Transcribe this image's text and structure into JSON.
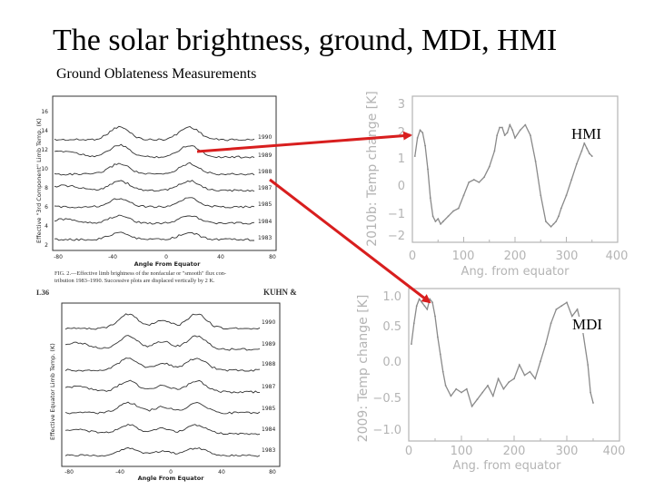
{
  "slide": {
    "title": "The solar brightness, ground, MDI, HMI",
    "subtitle": "Ground Oblateness Measurements"
  },
  "colors": {
    "arrow": "#d81e1e",
    "trace_gray": "#8a8a8a",
    "axis_gray": "#b4b4b4",
    "scan_ink": "#222222"
  },
  "ground_top": {
    "y_axis_label": "Effective \"3rd Component\" Limb Temp. (K)",
    "y_ticks": [
      "2",
      "4",
      "6",
      "8",
      "10",
      "12",
      "14",
      "16"
    ],
    "x_axis_label": "Angle From Equator",
    "x_ticks": [
      "-80",
      "-40",
      "0",
      "40",
      "80"
    ],
    "years": [
      "1990",
      "1989",
      "1988",
      "1987",
      "1985",
      "1984",
      "1983"
    ],
    "caption_line1": "FIG. 2.—Effective limb brightness of the nonfacular or \"smooth\" flux con-",
    "caption_line2": "tribution 1983–1990. Successive plots are displaced vertically by 2 K.",
    "page_tag": "L36",
    "author": "KUHN &"
  },
  "ground_bottom": {
    "y_axis_label": "Effective Equator Limb Temp. (K)",
    "years": [
      "1990",
      "1989",
      "1988",
      "1987",
      "1985",
      "1984",
      "1983"
    ],
    "x_ticks": [
      "-80",
      "-40",
      "0",
      "40",
      "80"
    ],
    "x_axis_label": "Angle From Equator"
  },
  "hmi_plot": {
    "label": "HMI",
    "ylabel": "2010b: Temp change [K]",
    "xlabel": "Ang. from equator",
    "y_ticks": [
      "3",
      "2",
      "1",
      "0",
      "−1",
      "−2"
    ],
    "x_ticks": [
      "0",
      "100",
      "200",
      "300",
      "400"
    ]
  },
  "mdi_plot": {
    "label": "MDI",
    "ylabel": "2009: Temp change [K]",
    "xlabel": "Ang. from equator",
    "y_ticks": [
      "1.0",
      "0.5",
      "0.0",
      "−0.5",
      "−1.0"
    ],
    "x_ticks": [
      "0",
      "100",
      "200",
      "300",
      "400"
    ]
  },
  "chart_data": [
    {
      "type": "line",
      "title": "HMI",
      "xlabel": "Ang. from equator",
      "ylabel": "2010b: Temp change [K]",
      "xlim": [
        0,
        400
      ],
      "ylim": [
        -2.3,
        3.3
      ],
      "x": [
        5,
        10,
        15,
        20,
        25,
        30,
        35,
        40,
        45,
        50,
        55,
        60,
        70,
        80,
        90,
        100,
        110,
        120,
        130,
        140,
        150,
        160,
        165,
        170,
        175,
        180,
        185,
        190,
        195,
        200,
        210,
        220,
        230,
        240,
        250,
        260,
        270,
        275,
        280,
        285,
        290,
        300,
        310,
        320,
        330,
        335,
        340,
        345,
        350
      ],
      "values": [
        1.0,
        1.7,
        2.0,
        1.9,
        1.4,
        0.5,
        -0.6,
        -1.3,
        -1.5,
        -1.4,
        -1.6,
        -1.5,
        -1.3,
        -1.1,
        -1.0,
        -0.5,
        0.0,
        0.1,
        0.0,
        0.2,
        0.6,
        1.2,
        1.8,
        2.1,
        2.1,
        1.8,
        1.9,
        2.2,
        2.0,
        1.7,
        2.0,
        2.2,
        1.8,
        0.8,
        -0.5,
        -1.5,
        -1.7,
        -1.6,
        -1.5,
        -1.3,
        -1.0,
        -0.5,
        0.1,
        0.7,
        1.2,
        1.5,
        1.3,
        1.1,
        1.0
      ]
    },
    {
      "type": "line",
      "title": "MDI",
      "xlabel": "Ang. from equator",
      "ylabel": "2009: Temp change [K]",
      "xlim": [
        0,
        400
      ],
      "ylim": [
        -1.1,
        1.1
      ],
      "x": [
        5,
        10,
        15,
        20,
        25,
        30,
        35,
        40,
        45,
        50,
        55,
        60,
        65,
        70,
        80,
        90,
        100,
        110,
        120,
        130,
        140,
        150,
        160,
        170,
        180,
        190,
        200,
        210,
        220,
        230,
        240,
        250,
        260,
        270,
        280,
        290,
        300,
        310,
        320,
        330,
        340,
        345,
        350
      ],
      "values": [
        0.3,
        0.6,
        0.85,
        0.95,
        0.9,
        0.85,
        0.8,
        0.95,
        0.9,
        0.7,
        0.4,
        0.15,
        -0.1,
        -0.3,
        -0.45,
        -0.35,
        -0.4,
        -0.35,
        -0.6,
        -0.5,
        -0.4,
        -0.3,
        -0.45,
        -0.2,
        -0.35,
        -0.25,
        -0.2,
        0.0,
        -0.15,
        -0.1,
        -0.2,
        0.05,
        0.3,
        0.6,
        0.8,
        0.85,
        0.9,
        0.7,
        0.8,
        0.5,
        0.0,
        -0.4,
        -0.55
      ]
    }
  ]
}
